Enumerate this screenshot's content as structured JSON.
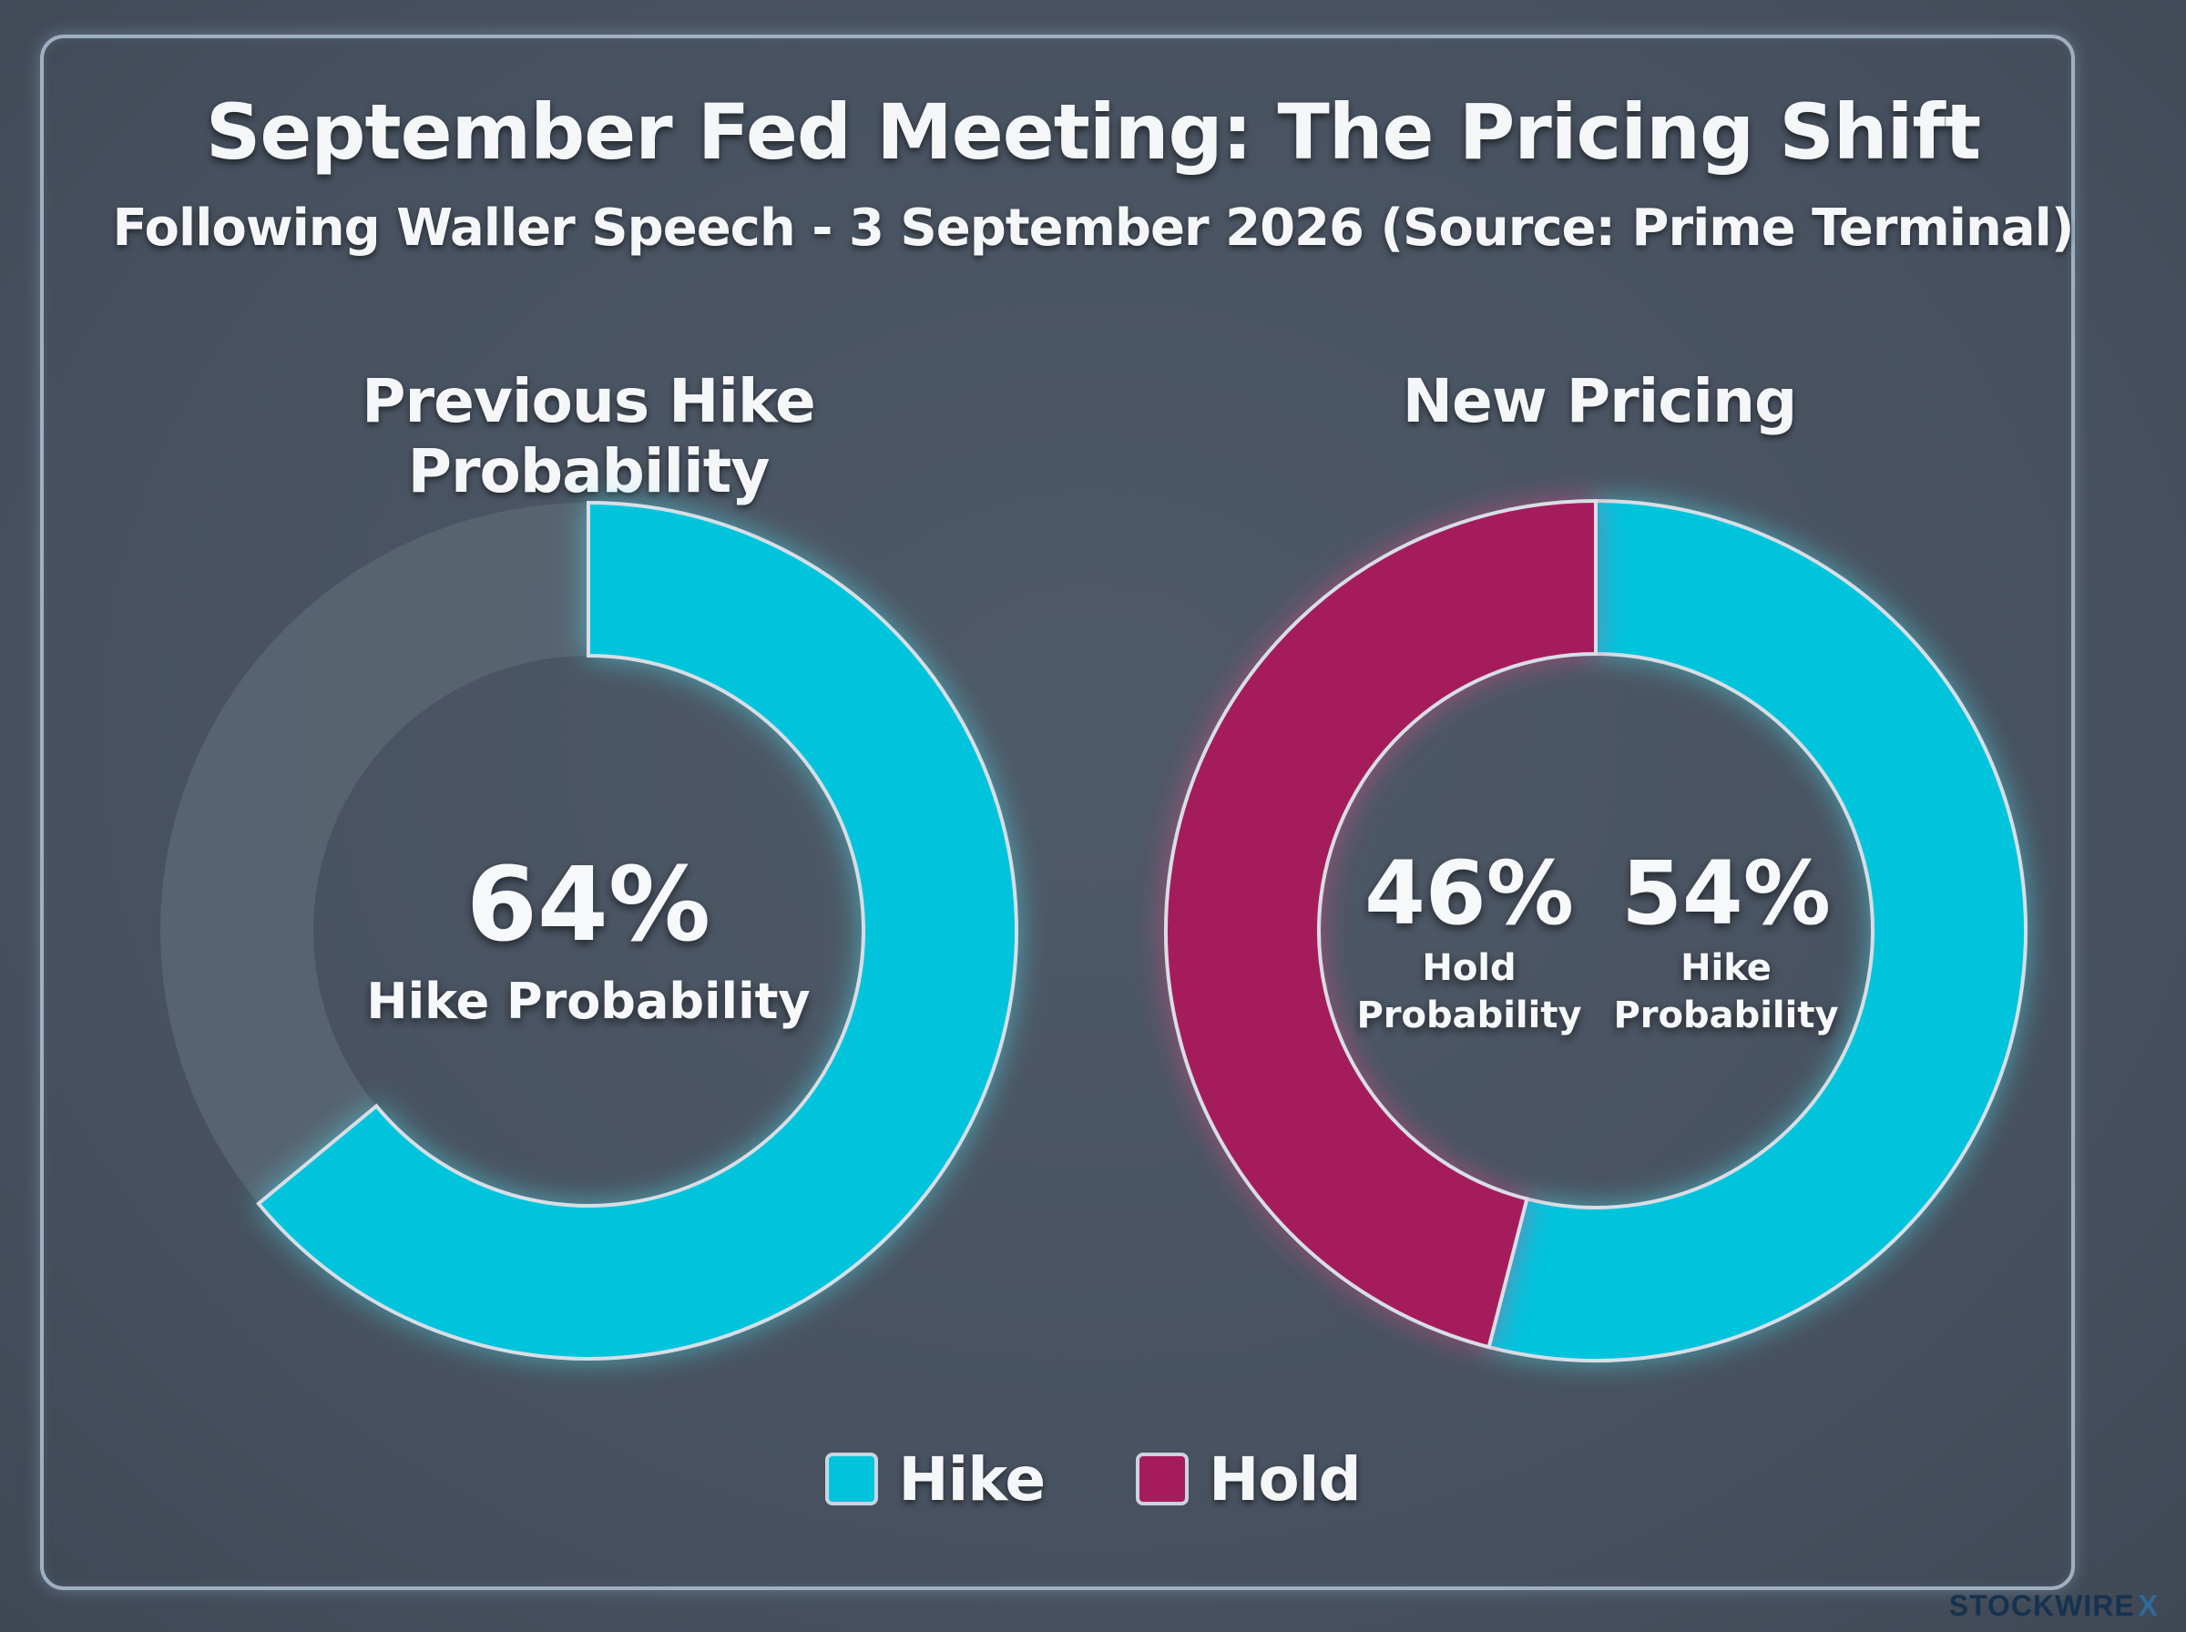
{
  "title": "September Fed Meeting: The Pricing Shift",
  "subtitle": "Following Waller Speech - 3 September 2026 (Source: Prime Terminal)",
  "panels": {
    "left": {
      "title": "Previous Hike Probability",
      "center_value": "64%",
      "center_label": "Hike Probability"
    },
    "right": {
      "title": "New Pricing",
      "hold_value": "46%",
      "hold_label_1": "Hold",
      "hold_label_2": "Probability",
      "hike_value": "54%",
      "hike_label_1": "Hike",
      "hike_label_2": "Probability"
    }
  },
  "legend": {
    "hike_label": "Hike",
    "hold_label": "Hold"
  },
  "brand": {
    "name": "STOCKWIRE",
    "mark": "X"
  },
  "colors": {
    "hike": "#00c4dc",
    "hold": "#a51c5c",
    "remainder": "#5b6673"
  },
  "chart_data": [
    {
      "type": "pie",
      "title": "Previous Hike Probability",
      "categories": [
        "Hike",
        "Remainder"
      ],
      "values": [
        64,
        36
      ],
      "unit": "%"
    },
    {
      "type": "pie",
      "title": "New Pricing",
      "categories": [
        "Hike",
        "Hold"
      ],
      "values": [
        54,
        46
      ],
      "unit": "%"
    }
  ]
}
